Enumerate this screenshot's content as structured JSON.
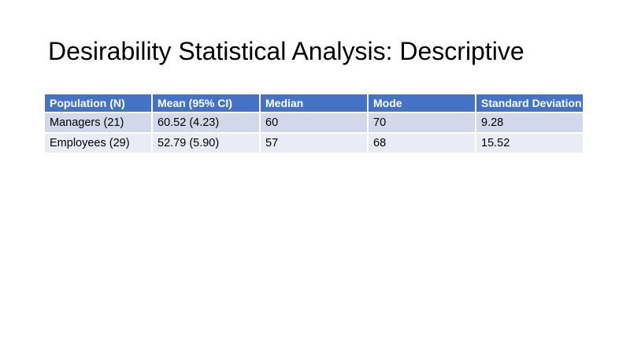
{
  "slide": {
    "title": "Desirability Statistical Analysis: Descriptive"
  },
  "table": {
    "columns": [
      "Population (N)",
      "Mean (95% CI)",
      "Median",
      "Mode",
      "Standard Deviation"
    ],
    "rows": [
      [
        "Managers (21)",
        "60.52 (4.23)",
        "60",
        "70",
        "9.28"
      ],
      [
        "Employees (29)",
        "52.79 (5.90)",
        "57",
        "68",
        "15.52"
      ]
    ]
  },
  "colors": {
    "header_bg": "#4472C4",
    "header_text": "#FFFFFF",
    "band_row_1_bg": "#D2D8EA",
    "band_row_2_bg": "#E9EBF5",
    "title_text": "#000000",
    "body_text": "#000000",
    "background": "#FFFFFF"
  }
}
